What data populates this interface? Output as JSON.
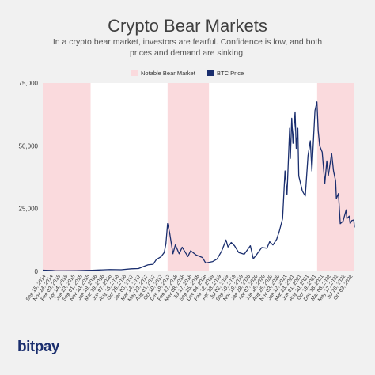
{
  "header": {
    "title": "Crypto Bear Markets",
    "subtitle": "In a crypto bear market, investors are fearful. Confidence is low, and both prices and demand are sinking."
  },
  "brand": {
    "logo_text": "bitpay"
  },
  "colors": {
    "background": "#f1f1f1",
    "plot_background": "#ffffff",
    "bear_band": "#fadadd",
    "btc_line": "#1a2e6e",
    "axis_text": "#333333"
  },
  "chart_data": {
    "type": "line",
    "title": "Crypto Bear Markets",
    "xlabel": "",
    "ylabel": "",
    "ylim": [
      0,
      75000
    ],
    "yticks": [
      0,
      25000,
      50000,
      75000
    ],
    "ytick_labels": [
      "0",
      "25,000",
      "50,000",
      "75,000"
    ],
    "grid": false,
    "legend_position": "top-center",
    "legend": [
      {
        "label": "Notable Bear Market",
        "color": "#fadadd"
      },
      {
        "label": "BTC Price",
        "color": "#1a2e6e"
      }
    ],
    "x_range": [
      "2014-09-15",
      "2022-10-31"
    ],
    "xtick_labels": [
      "Sep 15, 2014",
      "Nov 24, 2014",
      "Feb 03, 2015",
      "Apr 14, 2015",
      "Jun 23, 2015",
      "Sep 01, 2015",
      "Nov 10, 2015",
      "Jan 19, 2016",
      "Mar 29, 2016",
      "Jun 07, 2016",
      "Aug 16, 2016",
      "Oct 25, 2016",
      "Jan 03, 2017",
      "Mar 14, 2017",
      "May 23, 2017",
      "Aug 01, 2017",
      "Oct 10, 2017",
      "Dec 19, 2017",
      "Feb 27, 2018",
      "May 08, 2018",
      "Jul 17, 2018",
      "Sep 25, 2018",
      "Dec 04, 2018",
      "Feb 12, 2019",
      "Apr 23, 2019",
      "Jul 02, 2019",
      "Sep 10, 2019",
      "Nov 19, 2019",
      "Jan 28, 2020",
      "Apr 07, 2020",
      "Jun 16, 2020",
      "Aug 25, 2020",
      "Nov 03, 2020",
      "Jan 12, 2021",
      "Mar 23, 2021",
      "Jun 01, 2021",
      "Aug 10, 2021",
      "Oct 19, 2021",
      "Dec 28, 2021",
      "Mar 08, 2022",
      "May 17, 2022",
      "Jul 26, 2022",
      "Oct 03, 2022"
    ],
    "bear_markets": [
      {
        "start": "2014-09-15",
        "end": "2015-12-15"
      },
      {
        "start": "2017-12-17",
        "end": "2019-01-15"
      },
      {
        "start": "2021-11-10",
        "end": "2022-10-31"
      }
    ],
    "series": [
      {
        "name": "BTC Price",
        "x": [
          "2014-09-15",
          "2014-12-15",
          "2015-01-15",
          "2015-04-15",
          "2015-08-01",
          "2015-11-05",
          "2016-01-01",
          "2016-06-15",
          "2016-10-01",
          "2017-01-05",
          "2017-03-15",
          "2017-05-20",
          "2017-06-15",
          "2017-08-01",
          "2017-09-01",
          "2017-10-15",
          "2017-11-15",
          "2017-12-01",
          "2017-12-17",
          "2018-01-05",
          "2018-02-06",
          "2018-03-01",
          "2018-04-06",
          "2018-05-05",
          "2018-06-28",
          "2018-07-25",
          "2018-09-15",
          "2018-11-14",
          "2018-12-15",
          "2019-01-15",
          "2019-02-20",
          "2019-04-02",
          "2019-05-15",
          "2019-06-26",
          "2019-07-15",
          "2019-08-15",
          "2019-09-15",
          "2019-10-25",
          "2019-12-17",
          "2020-02-13",
          "2020-03-12",
          "2020-04-15",
          "2020-06-01",
          "2020-07-20",
          "2020-08-15",
          "2020-09-15",
          "2020-10-21",
          "2020-11-15",
          "2020-12-16",
          "2021-01-08",
          "2021-01-27",
          "2021-02-21",
          "2021-02-28",
          "2021-03-13",
          "2021-03-25",
          "2021-04-14",
          "2021-04-25",
          "2021-05-10",
          "2021-05-19",
          "2021-06-22",
          "2021-07-20",
          "2021-08-15",
          "2021-09-06",
          "2021-09-21",
          "2021-10-20",
          "2021-11-08",
          "2021-11-20",
          "2021-12-04",
          "2021-12-28",
          "2022-01-22",
          "2022-02-10",
          "2022-02-24",
          "2022-03-28",
          "2022-04-15",
          "2022-05-05",
          "2022-05-12",
          "2022-06-01",
          "2022-06-18",
          "2022-07-15",
          "2022-08-13",
          "2022-08-20",
          "2022-09-12",
          "2022-09-20",
          "2022-10-05",
          "2022-10-25",
          "2022-10-31"
        ],
        "values": [
          470,
          350,
          220,
          230,
          280,
          380,
          430,
          700,
          620,
          1000,
          1100,
          2200,
          2600,
          2800,
          4700,
          5800,
          7500,
          11000,
          19000,
          15500,
          7000,
          10500,
          7000,
          9600,
          5900,
          8200,
          6500,
          5500,
          3300,
          3600,
          3900,
          4900,
          8000,
          12500,
          9700,
          11500,
          10200,
          7500,
          6800,
          10200,
          5000,
          6800,
          9500,
          9200,
          11800,
          10500,
          12800,
          16000,
          21000,
          40000,
          30500,
          57000,
          45000,
          61000,
          51000,
          63500,
          49000,
          57000,
          38000,
          32000,
          30000,
          46000,
          52000,
          40000,
          64000,
          67500,
          56000,
          50000,
          47500,
          35000,
          44000,
          38000,
          47000,
          40000,
          36000,
          29000,
          31000,
          19000,
          20000,
          24500,
          21000,
          22000,
          19000,
          20200,
          20500,
          17500
        ]
      }
    ]
  }
}
